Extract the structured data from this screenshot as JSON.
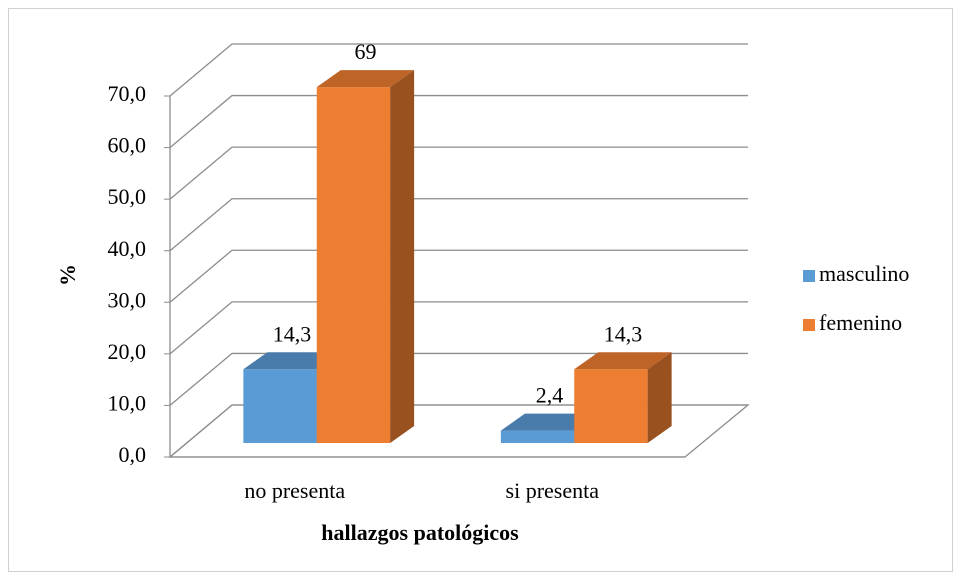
{
  "chart_data": {
    "type": "bar3d",
    "categories": [
      "no presenta",
      "si presenta"
    ],
    "series": [
      {
        "name": "masculino",
        "color": "#5b9bd5",
        "values": [
          14.3,
          2.4
        ],
        "value_labels": [
          "14,3",
          "2,4"
        ]
      },
      {
        "name": "femenino",
        "color": "#ed7d31",
        "values": [
          69,
          14.3
        ],
        "value_labels": [
          "69",
          "14,3"
        ]
      }
    ],
    "ylim": [
      0,
      70
    ],
    "yticks": [
      {
        "value": 0,
        "label": "0,0"
      },
      {
        "value": 10,
        "label": "10,0"
      },
      {
        "value": 20,
        "label": "20,0"
      },
      {
        "value": 30,
        "label": "30,0"
      },
      {
        "value": 40,
        "label": "40,0"
      },
      {
        "value": 50,
        "label": "50,0"
      },
      {
        "value": 60,
        "label": "60,0"
      },
      {
        "value": 70,
        "label": "70,0"
      }
    ],
    "ylabel": "%",
    "xlabel": "hallazgos patológicos",
    "grid": true,
    "legend": "right"
  }
}
